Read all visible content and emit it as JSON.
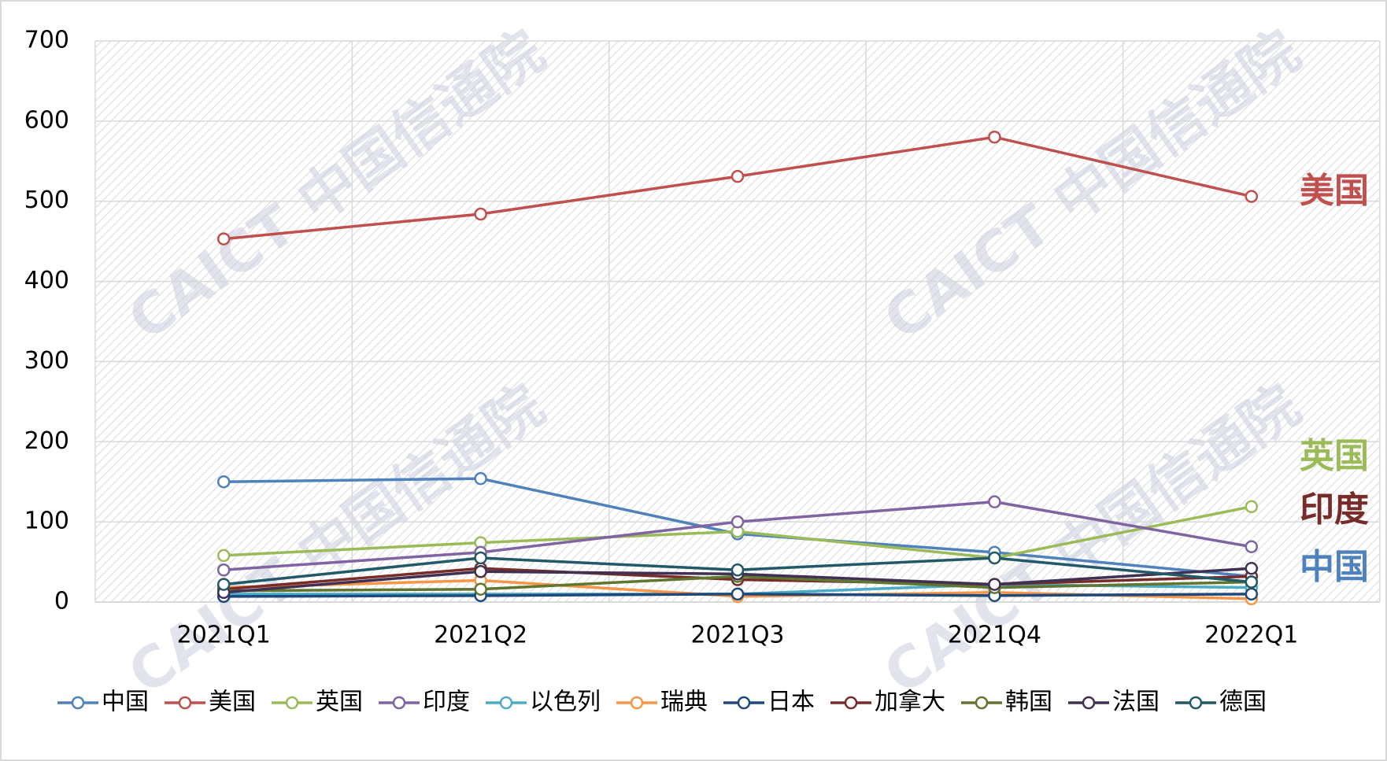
{
  "chart_data": {
    "type": "line",
    "watermark": "CAICT 中国信通院",
    "categories": [
      "2021Q1",
      "2021Q2",
      "2021Q3",
      "2021Q4",
      "2022Q1"
    ],
    "ylim": [
      0,
      700
    ],
    "yticks": [
      0,
      100,
      200,
      300,
      400,
      500,
      600,
      700
    ],
    "grid": true,
    "legend": "bottom",
    "series": [
      {
        "name": "中国",
        "color": "#4f81bd",
        "values": [
          150,
          154,
          85,
          62,
          32
        ]
      },
      {
        "name": "美国",
        "color": "#c0504d",
        "values": [
          453,
          484,
          531,
          580,
          506
        ]
      },
      {
        "name": "英国",
        "color": "#9bbb59",
        "values": [
          58,
          74,
          88,
          55,
          119
        ]
      },
      {
        "name": "印度",
        "color": "#8064a2",
        "values": [
          40,
          62,
          100,
          125,
          69
        ]
      },
      {
        "name": "以色列",
        "color": "#4bacc6",
        "values": [
          10,
          10,
          10,
          22,
          18
        ]
      },
      {
        "name": "瑞典",
        "color": "#f79646",
        "values": [
          18,
          27,
          7,
          12,
          4
        ]
      },
      {
        "name": "日本",
        "color": "#1f497d",
        "values": [
          7,
          8,
          10,
          8,
          10
        ]
      },
      {
        "name": "加拿大",
        "color": "#772c2a",
        "values": [
          16,
          42,
          28,
          22,
          32
        ]
      },
      {
        "name": "韩国",
        "color": "#5f7530",
        "values": [
          14,
          16,
          32,
          18,
          25
        ]
      },
      {
        "name": "法国",
        "color": "#403152",
        "values": [
          12,
          38,
          35,
          22,
          42
        ]
      },
      {
        "name": "德国",
        "color": "#215968",
        "values": [
          22,
          55,
          40,
          55,
          25
        ]
      }
    ],
    "annotations": [
      {
        "text": "美国",
        "color": "#c0504d"
      },
      {
        "text": "英国",
        "color": "#9bbb59"
      },
      {
        "text": "印度",
        "color": "#772c2a"
      },
      {
        "text": "中国",
        "color": "#4f81bd"
      }
    ]
  }
}
